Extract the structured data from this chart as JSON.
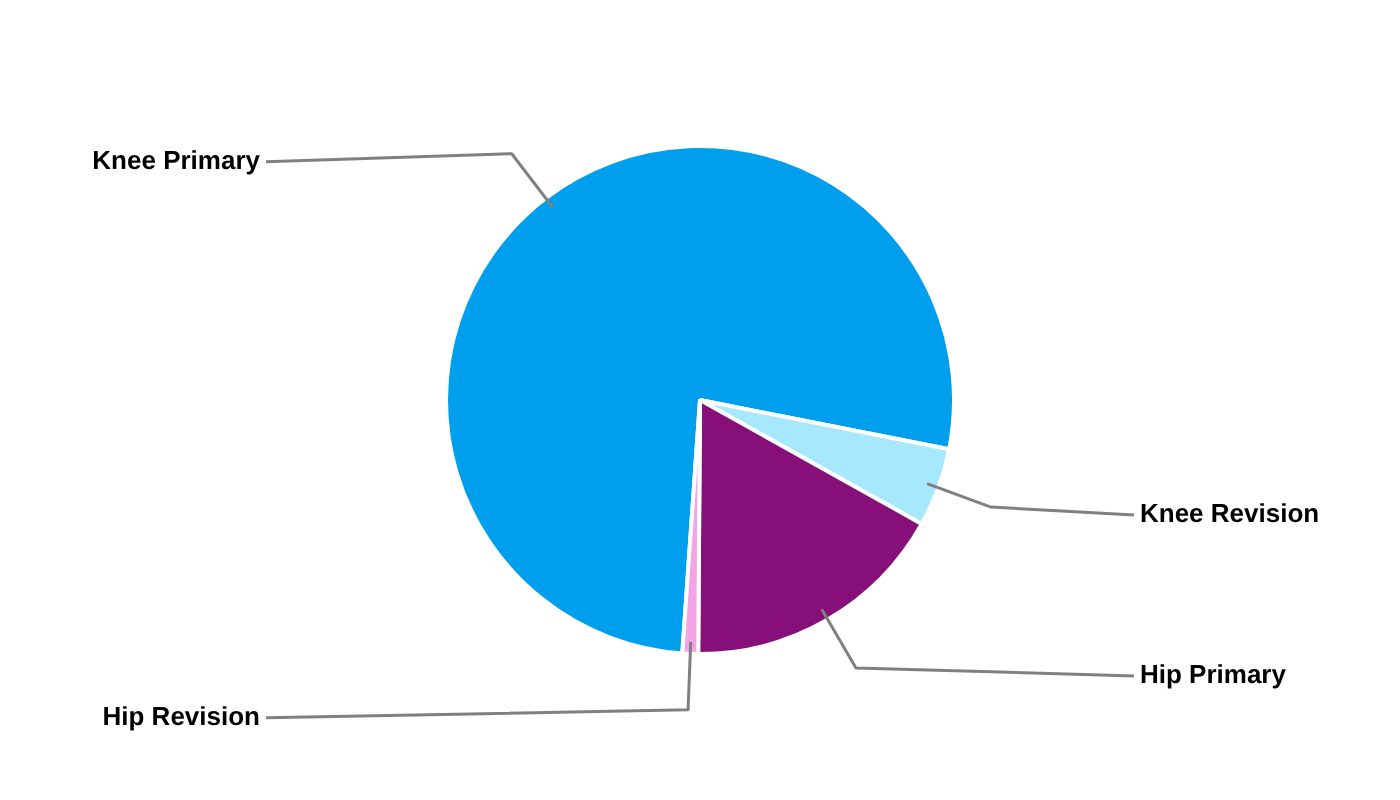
{
  "chart_data": {
    "type": "pie",
    "categories": [
      "Knee Primary",
      "Knee Revision",
      "Hip Primary",
      "Hip Revision"
    ],
    "values": [
      77,
      5,
      17,
      1
    ],
    "colors": [
      "#009fee",
      "#a6e8fd",
      "#870f7a",
      "#f4a4e6"
    ],
    "legend": false
  }
}
